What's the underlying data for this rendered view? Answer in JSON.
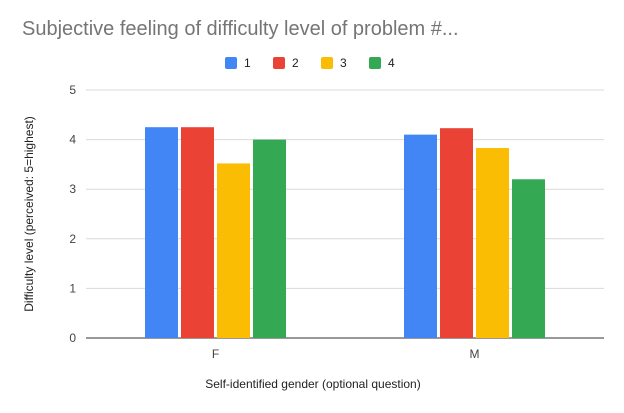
{
  "chart_data": {
    "type": "bar",
    "title": "Subjective feeling of difficulty level of problem #...",
    "xlabel": "Self-identified gender (optional question)",
    "ylabel": "Difficulty level (perceived: 5=highest)",
    "categories": [
      "F",
      "M"
    ],
    "ylim": [
      0,
      5
    ],
    "yticks": [
      "0",
      "1",
      "2",
      "3",
      "4",
      "5"
    ],
    "grid": true,
    "legend_position": "top",
    "series": [
      {
        "name": "1",
        "color": "#4285f4",
        "values": [
          4.25,
          4.1
        ]
      },
      {
        "name": "2",
        "color": "#ea4335",
        "values": [
          4.25,
          4.23
        ]
      },
      {
        "name": "3",
        "color": "#fbbc04",
        "values": [
          3.52,
          3.83
        ]
      },
      {
        "name": "4",
        "color": "#34a853",
        "values": [
          4.0,
          3.2
        ]
      }
    ]
  }
}
